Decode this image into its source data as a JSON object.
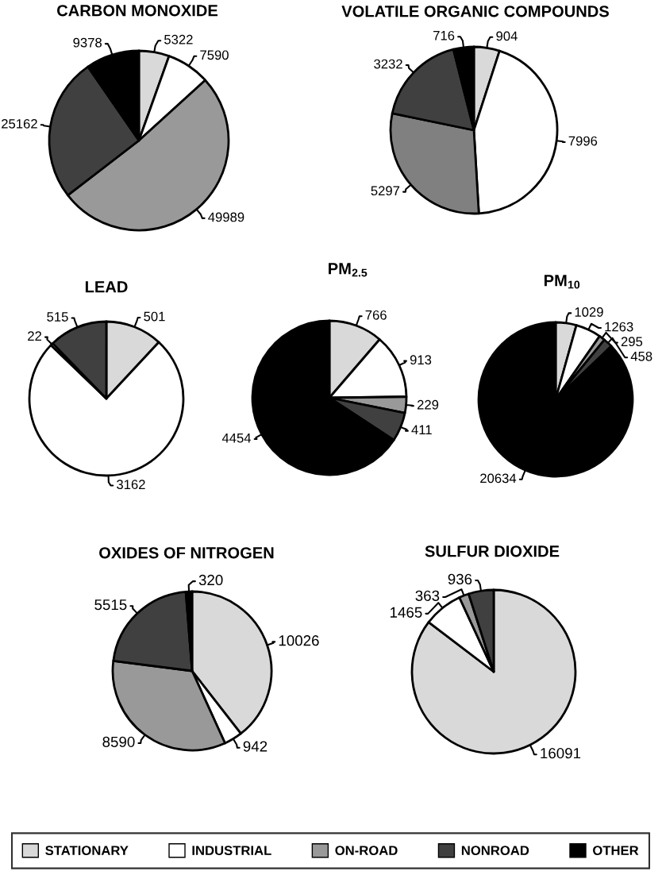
{
  "chart_data": [
    {
      "type": "pie",
      "title": "CARBON MONOXIDE",
      "categories": [
        "STATIONARY",
        "INDUSTRIAL",
        "ON-ROAD",
        "NONROAD",
        "OTHER"
      ],
      "values": [
        5322,
        7590,
        49989,
        25162,
        9378
      ],
      "colors": [
        "#d9d9d9",
        "#ffffff",
        "#999999",
        "#404040",
        "#000000"
      ],
      "data_labels": true,
      "legend": "bottom"
    },
    {
      "type": "pie",
      "title": "VOLATILE ORGANIC COMPOUNDS",
      "values": [
        904,
        7996,
        5297,
        3232,
        716
      ],
      "colors": [
        "#d9d9d9",
        "#ffffff",
        "#808080",
        "#404040",
        "#000000"
      ],
      "data_labels": true
    },
    {
      "type": "pie",
      "title": "LEAD",
      "values": [
        501,
        3162,
        22,
        515
      ],
      "colors": [
        "#d9d9d9",
        "#ffffff",
        "#999999",
        "#404040"
      ],
      "data_labels": true
    },
    {
      "type": "pie",
      "title": "PM$_{2.5}$",
      "values": [
        766,
        913,
        229,
        411,
        4454
      ],
      "colors": [
        "#d9d9d9",
        "#ffffff",
        "#999999",
        "#404040",
        "#000000"
      ],
      "data_labels": true
    },
    {
      "type": "pie",
      "title": "PM$_{10}$",
      "values": [
        1029,
        1263,
        295,
        458,
        20634
      ],
      "colors": [
        "#d9d9d9",
        "#ffffff",
        "#999999",
        "#404040",
        "#000000"
      ],
      "data_labels": true
    },
    {
      "type": "pie",
      "title": "OXIDES OF NITROGEN",
      "values": [
        10026,
        942,
        8590,
        5515,
        320
      ],
      "colors": [
        "#d9d9d9",
        "#ffffff",
        "#999999",
        "#404040",
        "#000000"
      ],
      "data_labels": true
    },
    {
      "type": "pie",
      "title": "SULFUR DIOXIDE",
      "values": [
        16091,
        1465,
        363,
        936
      ],
      "colors": [
        "#d9d9d9",
        "#ffffff",
        "#999999",
        "#404040"
      ],
      "data_labels": true
    }
  ]
}
